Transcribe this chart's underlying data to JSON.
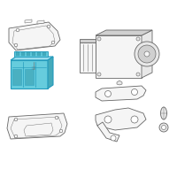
{
  "bg_color": "#ffffff",
  "outline_color": "#666666",
  "highlight_stroke": "#2299bb",
  "highlight_fill": "#66ccdd",
  "highlight_dark": "#44aabb",
  "highlight_top": "#99ddee",
  "gray_fill": "#f5f5f5",
  "gray_mid": "#e8e8e8",
  "gray_dark": "#d0d0d0",
  "lw": 0.6,
  "hlw": 0.8
}
